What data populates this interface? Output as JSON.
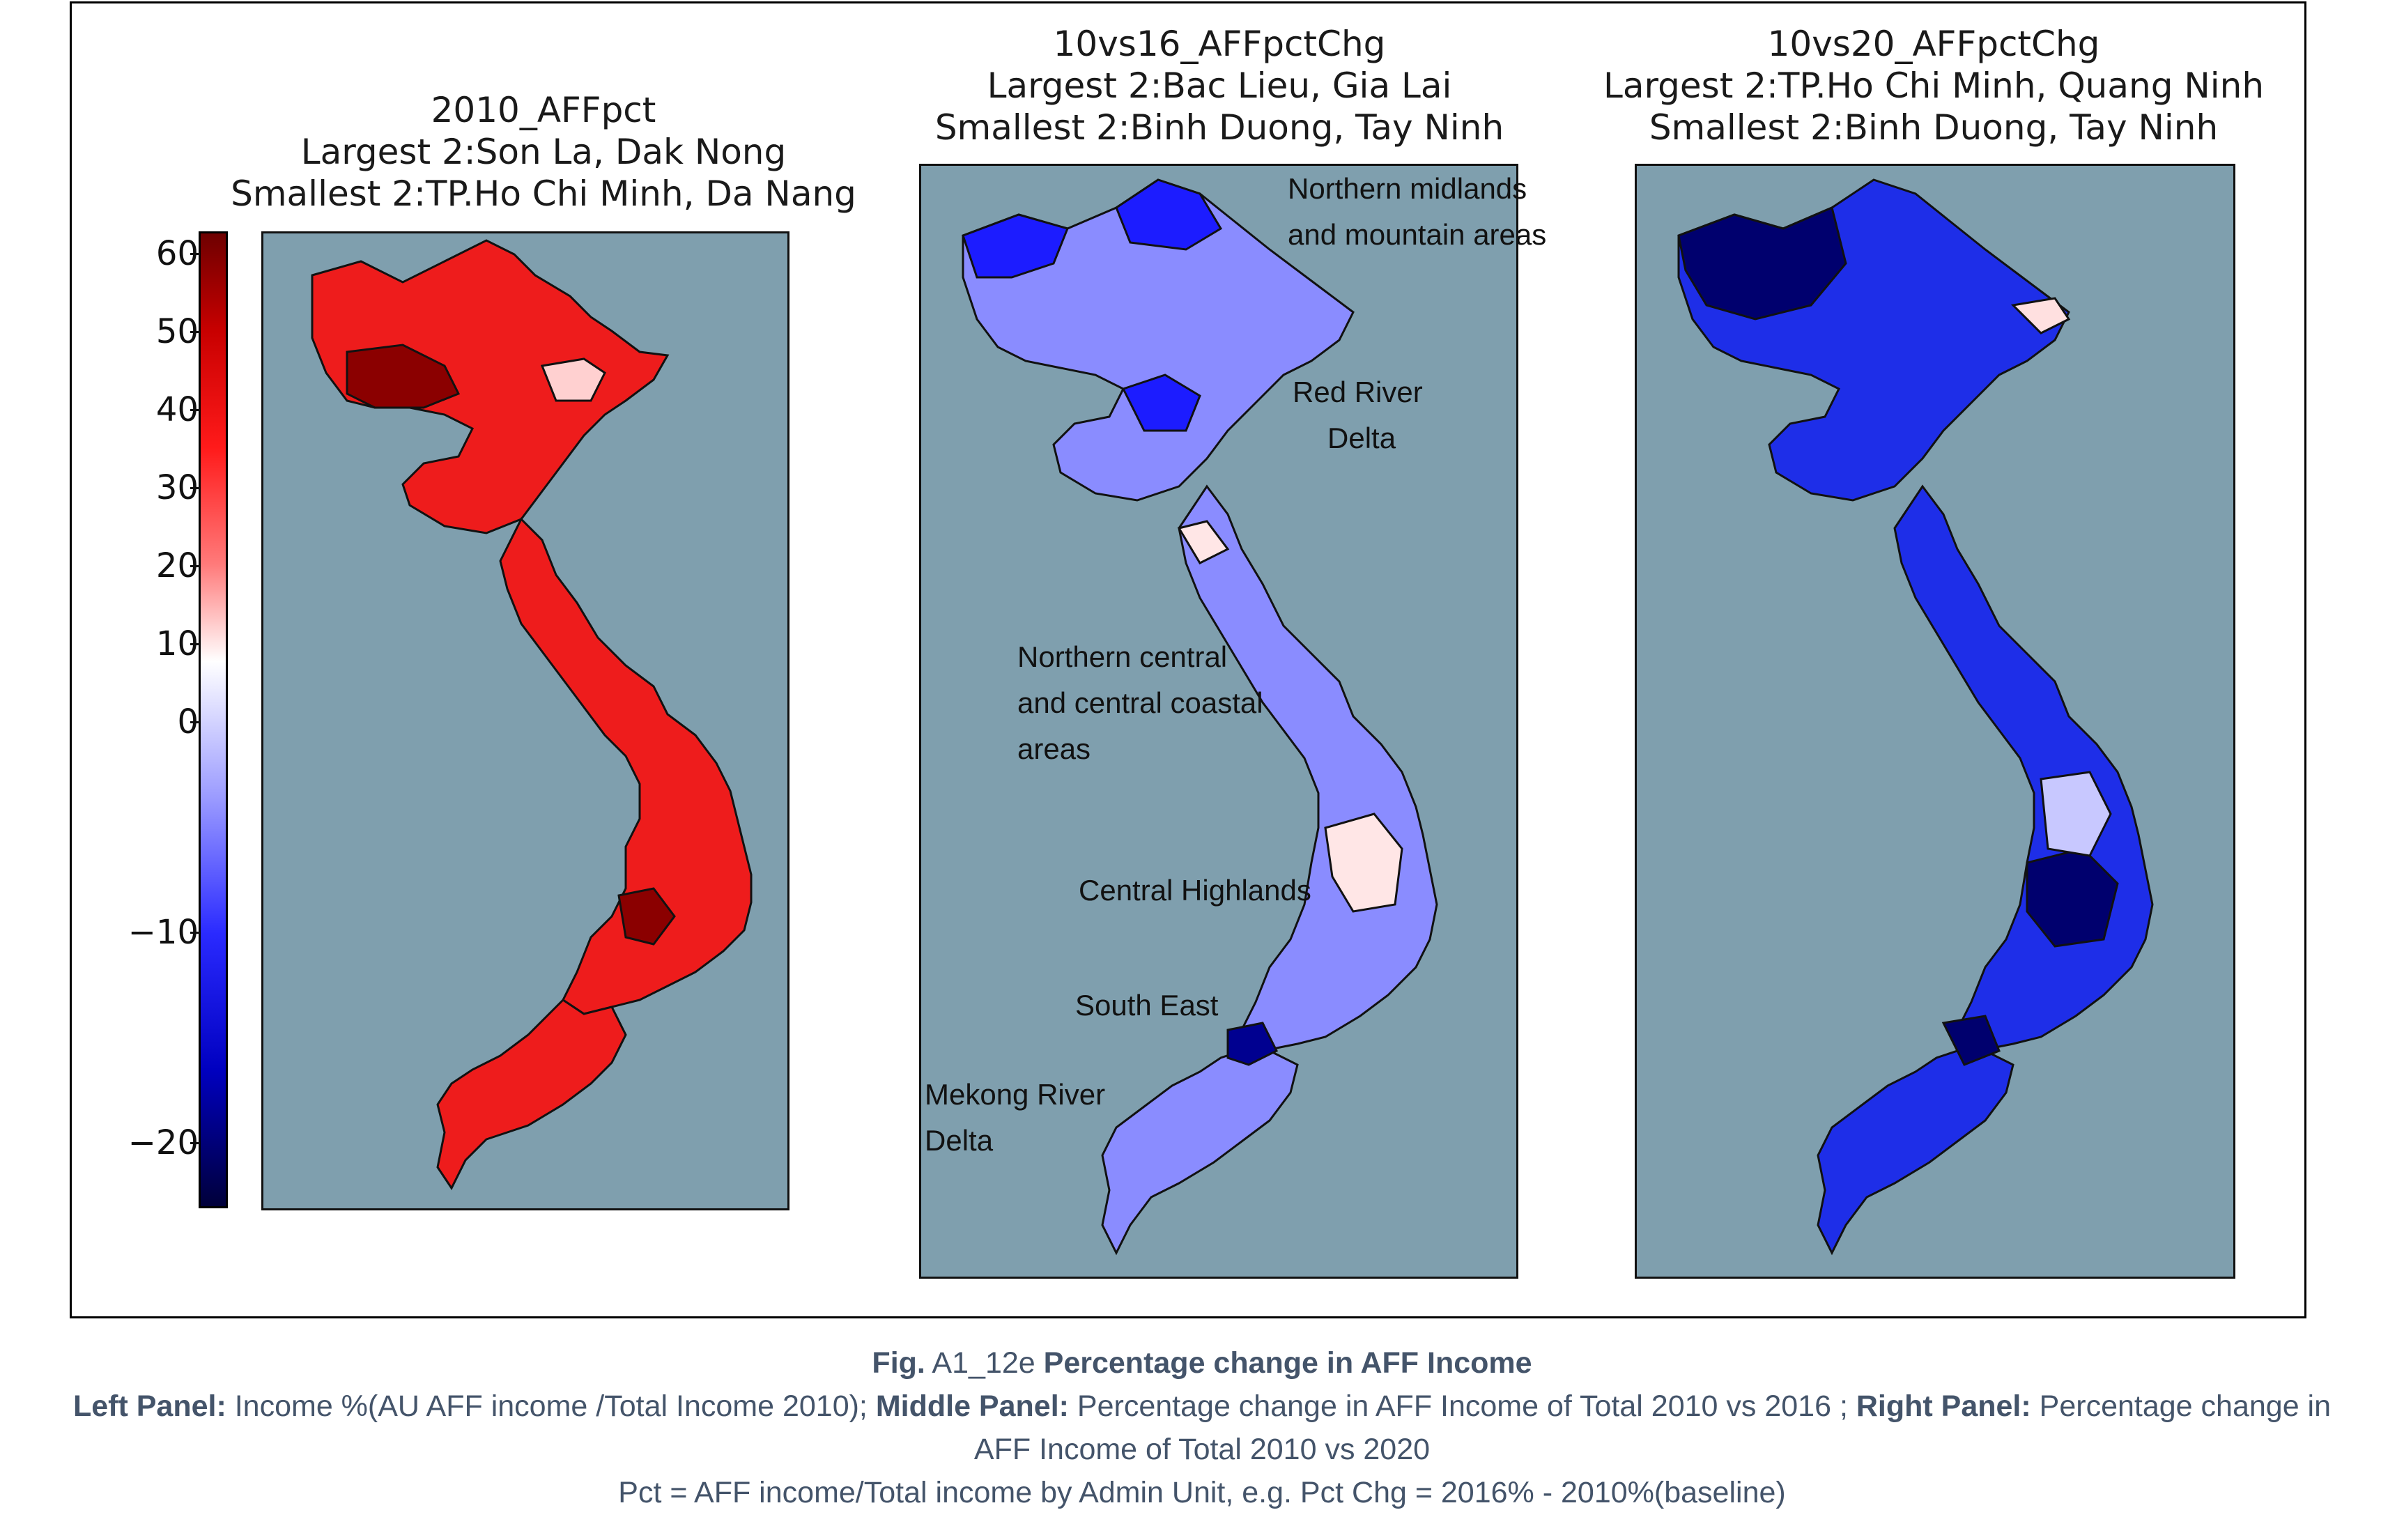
{
  "colors": {
    "sea": "#7f9fae",
    "frame": "#000000",
    "caption_text": "#44546a"
  },
  "panels": {
    "left": {
      "title1": "2010_AFFpct",
      "title2": "Largest 2:Son La, Dak Nong",
      "title3": "Smallest 2:TP.Ho Chi Minh, Da Nang",
      "fill_color": "#ee1c1c"
    },
    "middle": {
      "title1": "10vs16_AFFpctChg",
      "title2": "Largest 2:Bac Lieu, Gia Lai",
      "title3": "Smallest 2:Binh Duong, Tay Ninh",
      "fill_color": "#8a8cff"
    },
    "right": {
      "title1": "10vs20_AFFpctChg",
      "title2": "Largest 2:TP.Ho Chi Minh, Quang Ninh",
      "title3": "Smallest 2:Binh Duong, Tay Ninh",
      "fill_color": "#1e2ee8"
    }
  },
  "colorbar": {
    "ticks": [
      "60",
      "50",
      "40",
      "30",
      "20",
      "10",
      "0",
      "−10",
      "−20"
    ]
  },
  "region_labels": {
    "northern_midlands_1": "Northern midlands",
    "northern_midlands_2": "and mountain areas",
    "red_river_1": "Red River",
    "red_river_2": "Delta",
    "north_central_1": "Northern central",
    "north_central_2": "and central coastal",
    "north_central_3": "areas",
    "central_highlands": "Central Highlands",
    "south_east": "South East",
    "mekong_1": "Mekong River",
    "mekong_2": "Delta"
  },
  "caption": {
    "fig_prefix": "Fig.",
    "fig_id": " A1_12e ",
    "fig_title": "Percentage change in AFF Income",
    "left_label": "Left Panel:",
    "left_text": " Income %(AU AFF income /Total Income 2010); ",
    "middle_label": "Middle Panel:",
    "middle_text": " Percentage change in AFF Income of Total 2010 vs 2016 ; ",
    "right_label": "Right Panel:",
    "right_text": " Percentage change in",
    "right_text_cont": "AFF Income of Total 2010 vs 2020",
    "formula": "Pct = AFF income/Total income by Admin Unit, e.g. Pct Chg = 2016% - 2010%(baseline)"
  }
}
